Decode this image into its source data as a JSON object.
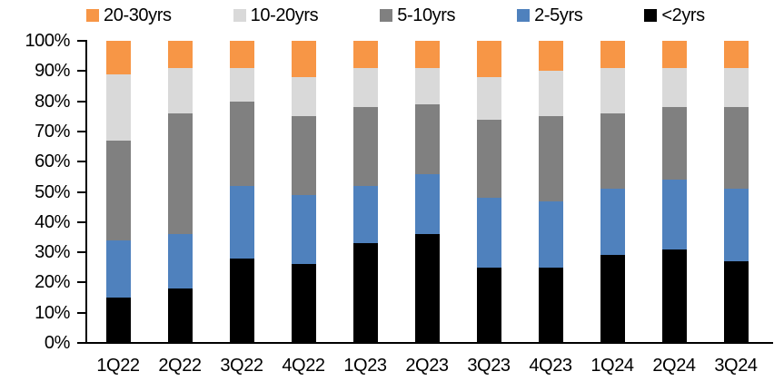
{
  "chart_data": {
    "type": "bar",
    "subtype": "100%-stacked-column",
    "title": "",
    "xlabel": "",
    "ylabel": "",
    "grid": false,
    "legend_position": "top",
    "categories": [
      "1Q22",
      "2Q22",
      "3Q22",
      "4Q22",
      "1Q23",
      "2Q23",
      "3Q23",
      "4Q23",
      "1Q24",
      "2Q24",
      "3Q24"
    ],
    "series": [
      {
        "name": "<2yrs",
        "color": "#000000",
        "values": [
          15,
          18,
          28,
          26,
          33,
          36,
          25,
          25,
          29,
          31,
          27
        ]
      },
      {
        "name": "2-5yrs",
        "color": "#4F81BD",
        "values": [
          19,
          18,
          24,
          23,
          19,
          20,
          23,
          22,
          22,
          23,
          24
        ]
      },
      {
        "name": "5-10yrs",
        "color": "#808080",
        "values": [
          33,
          40,
          28,
          26,
          26,
          23,
          26,
          28,
          25,
          24,
          27
        ]
      },
      {
        "name": "10-20yrs",
        "color": "#D9D9D9",
        "values": [
          22,
          15,
          11,
          13,
          13,
          12,
          14,
          15,
          15,
          13,
          13
        ]
      },
      {
        "name": "20-30yrs",
        "color": "#F79646",
        "values": [
          11,
          9,
          9,
          12,
          9,
          9,
          12,
          10,
          9,
          9,
          9
        ]
      }
    ],
    "legend_entries": [
      "20-30yrs",
      "10-20yrs",
      "5-10yrs",
      "2-5yrs",
      "<2yrs"
    ],
    "y_axis": {
      "min": 0,
      "max": 100,
      "step": 10,
      "tick_labels": [
        "0%",
        "10%",
        "20%",
        "30%",
        "40%",
        "50%",
        "60%",
        "70%",
        "80%",
        "90%",
        "100%"
      ]
    }
  }
}
